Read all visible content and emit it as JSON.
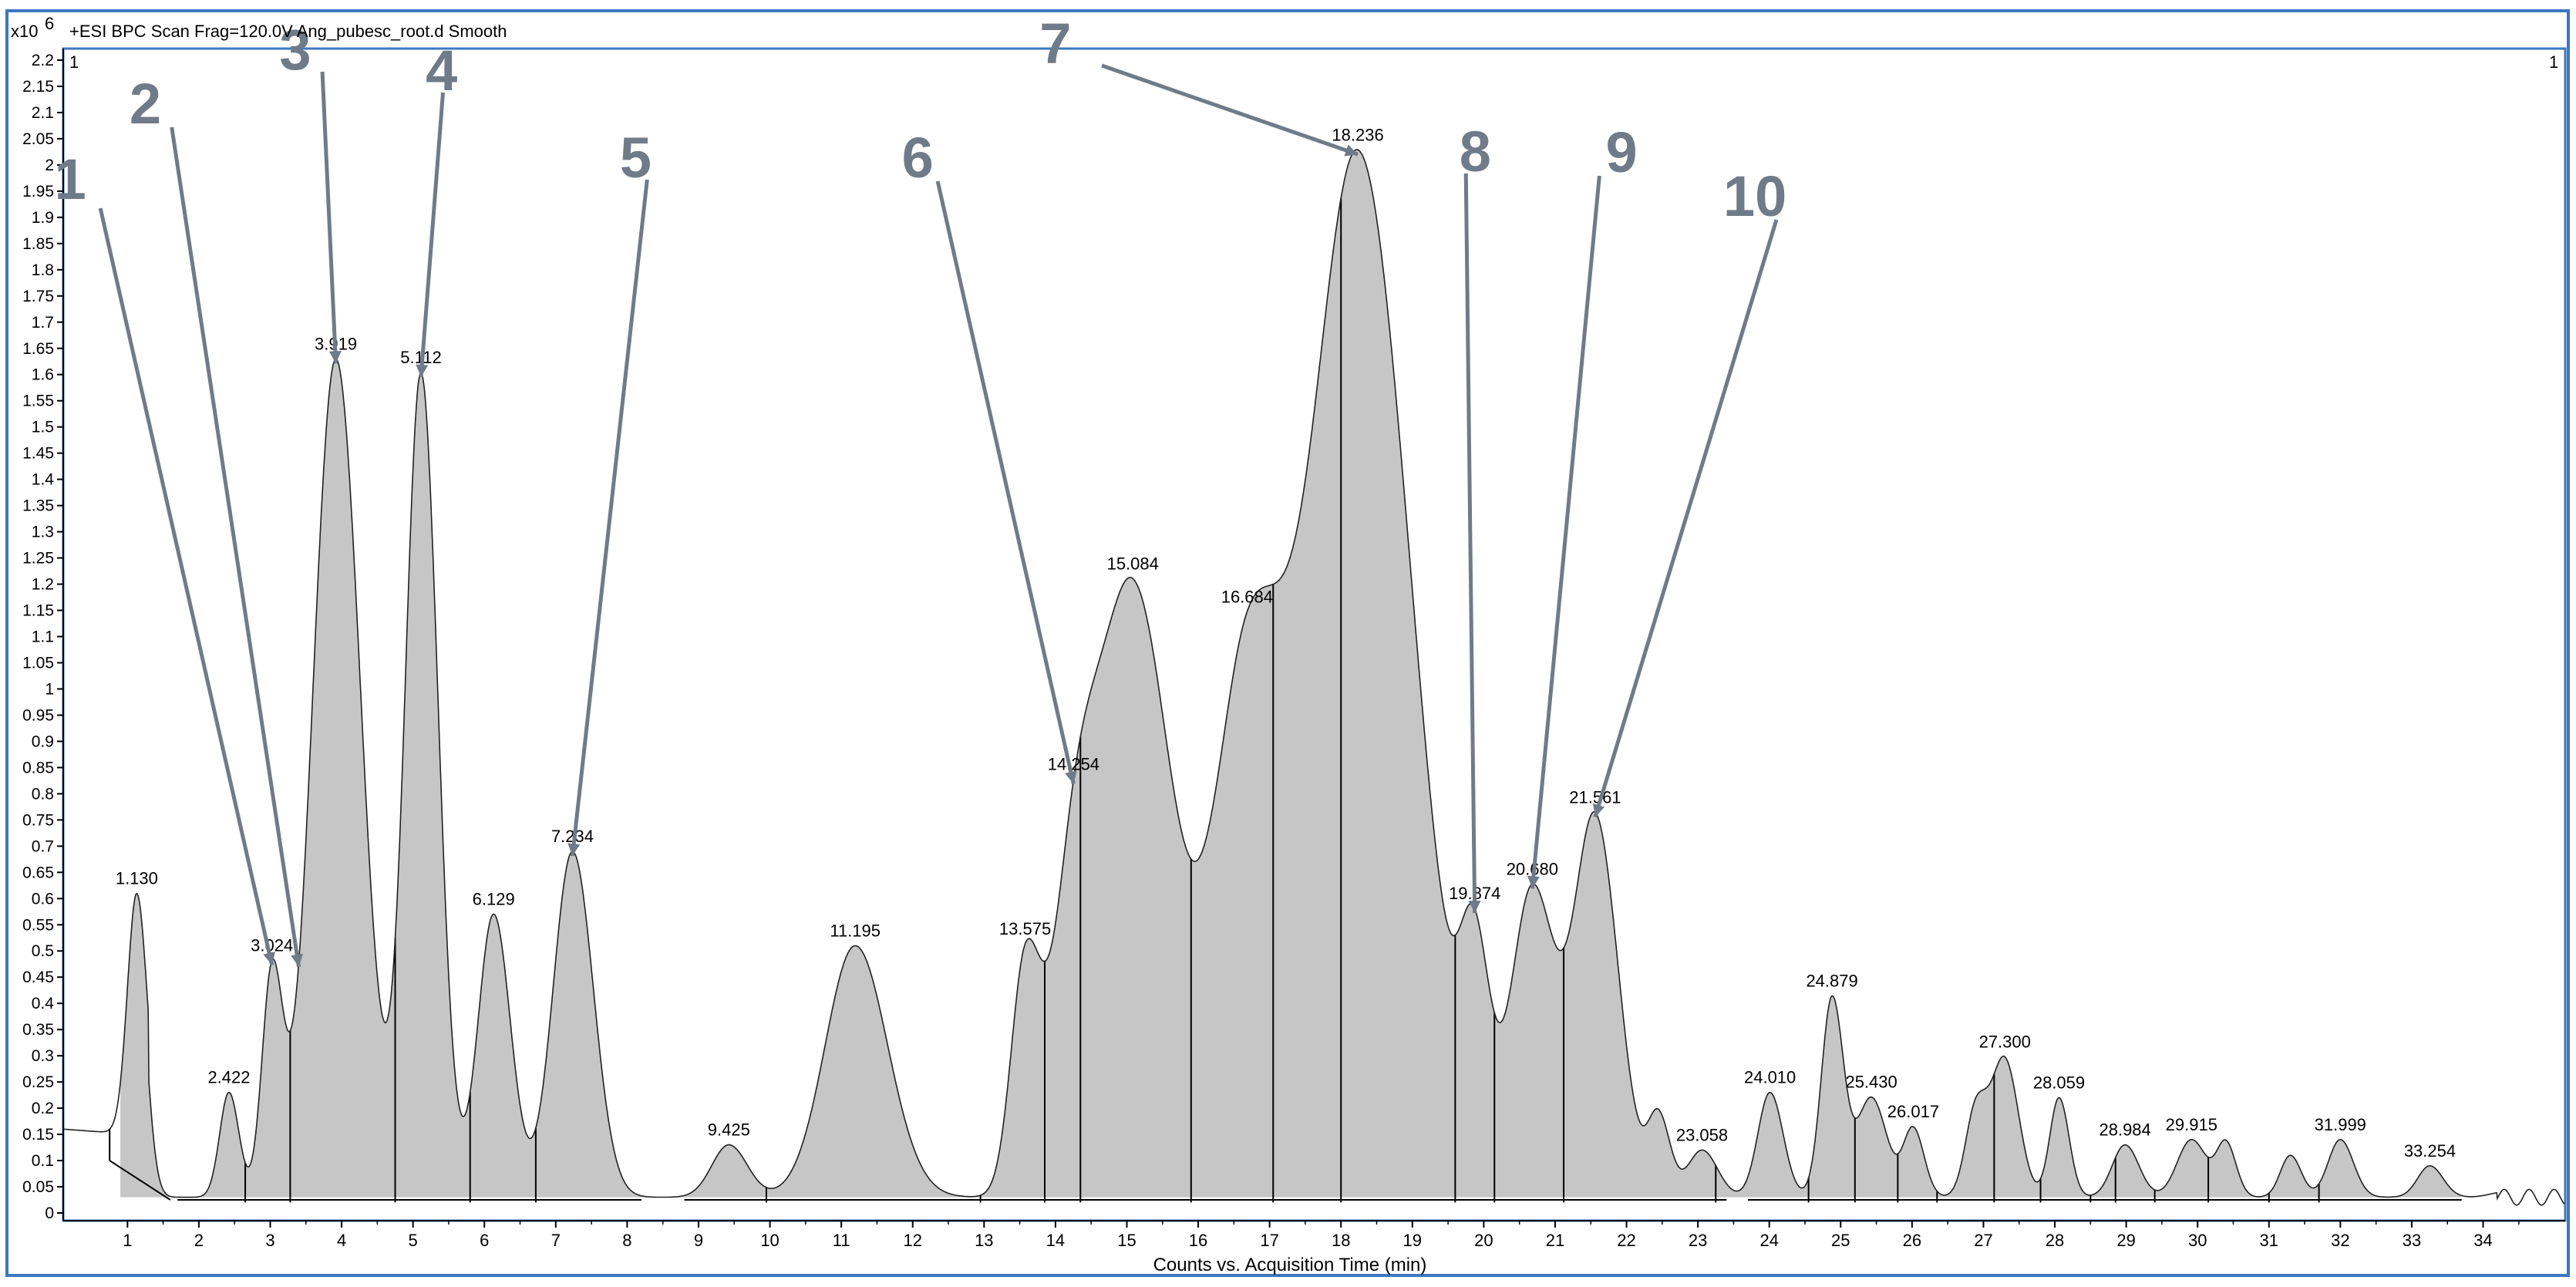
{
  "header": {
    "scale_label": "x10",
    "scale_exponent": "6",
    "title": "+ESI BPC Scan Frag=120.0V Ang_pubesc_root.d  Smooth",
    "corner_left": "1",
    "corner_right": "1"
  },
  "colors": {
    "frame_border": "#3c78c1",
    "peak_fill": "#c6c6c6",
    "trace": "#222222",
    "callout": "#6f7b89"
  },
  "chart_data": {
    "type": "line",
    "title": "+ESI BPC Scan Frag=120.0V Ang_pubesc_root.d  Smooth",
    "xlabel": "Counts vs. Acquisition Time (min)",
    "ylabel": "",
    "y_scale_label": "x10^6",
    "xlim": [
      0.1,
      35.15
    ],
    "ylim": [
      0,
      2.2
    ],
    "x_ticks": [
      "1",
      "2",
      "3",
      "4",
      "5",
      "6",
      "7",
      "8",
      "9",
      "10",
      "11",
      "12",
      "13",
      "14",
      "15",
      "16",
      "17",
      "18",
      "19",
      "20",
      "21",
      "22",
      "23",
      "24",
      "25",
      "26",
      "27",
      "28",
      "29",
      "30",
      "31",
      "32",
      "33",
      "34"
    ],
    "y_ticks": [
      "0",
      "0.05",
      "0.1",
      "0.15",
      "0.2",
      "0.25",
      "0.3",
      "0.35",
      "0.4",
      "0.45",
      "0.5",
      "0.55",
      "0.6",
      "0.65",
      "0.7",
      "0.75",
      "0.8",
      "0.85",
      "0.9",
      "0.95",
      "1",
      "1.05",
      "1.1",
      "1.15",
      "1.2",
      "1.25",
      "1.3",
      "1.35",
      "1.4",
      "1.45",
      "1.5",
      "1.55",
      "1.6",
      "1.65",
      "1.7",
      "1.75",
      "1.8",
      "1.85",
      "1.9",
      "1.95",
      "2",
      "2.05",
      "2.1",
      "2.15",
      "2.2"
    ],
    "grid": false,
    "baseline": 0.03,
    "peaks": [
      {
        "rt": 1.13,
        "height": 0.49,
        "width": 0.13,
        "label": "1.130"
      },
      {
        "rt": 2.422,
        "height": 0.23,
        "width": 0.13,
        "label": "2.422"
      },
      {
        "rt": 3.024,
        "height": 0.45,
        "width": 0.14,
        "label": "3.024"
      },
      {
        "rt": 3.919,
        "height": 1.63,
        "width": 0.32,
        "label": "3.919"
      },
      {
        "rt": 5.112,
        "height": 1.6,
        "width": 0.22,
        "label": "5.112"
      },
      {
        "rt": 6.129,
        "height": 0.57,
        "width": 0.22,
        "label": "6.129"
      },
      {
        "rt": 7.234,
        "height": 0.69,
        "width": 0.27,
        "label": "7.234"
      },
      {
        "rt": 9.425,
        "height": 0.13,
        "width": 0.24,
        "label": "9.425"
      },
      {
        "rt": 11.195,
        "height": 0.51,
        "width": 0.42,
        "label": "11.195"
      },
      {
        "rt": 13.575,
        "height": 0.46,
        "width": 0.2,
        "label": "13.575"
      },
      {
        "rt": 14.254,
        "height": 0.5,
        "width": 0.3,
        "label": "14.254"
      },
      {
        "rt": 15.084,
        "height": 1.19,
        "width": 0.52,
        "label": "15.084"
      },
      {
        "rt": 16.684,
        "height": 0.98,
        "width": 0.47,
        "label": "16.684"
      },
      {
        "rt": 18.236,
        "height": 2.02,
        "width": 0.68,
        "label": "18.236"
      },
      {
        "rt": 19.874,
        "height": 0.4,
        "width": 0.2,
        "label": "19.874"
      },
      {
        "rt": 20.68,
        "height": 0.61,
        "width": 0.3,
        "label": "20.680"
      },
      {
        "rt": 21.561,
        "height": 0.75,
        "width": 0.3,
        "label": "21.561"
      },
      {
        "rt": 23.058,
        "height": 0.12,
        "width": 0.2,
        "label": "23.058"
      },
      {
        "rt": 24.01,
        "height": 0.23,
        "width": 0.17,
        "label": "24.010"
      },
      {
        "rt": 24.879,
        "height": 0.41,
        "width": 0.15,
        "label": "24.879"
      },
      {
        "rt": 25.43,
        "height": 0.22,
        "width": 0.2,
        "label": "25.430"
      },
      {
        "rt": 26.017,
        "height": 0.16,
        "width": 0.14,
        "label": "26.017"
      },
      {
        "rt": 27.3,
        "height": 0.29,
        "width": 0.18,
        "label": "27.300"
      },
      {
        "rt": 28.059,
        "height": 0.22,
        "width": 0.13,
        "label": "28.059"
      },
      {
        "rt": 28.984,
        "height": 0.13,
        "width": 0.18,
        "label": "28.984"
      },
      {
        "rt": 29.915,
        "height": 0.14,
        "width": 0.2,
        "label": "29.915"
      },
      {
        "rt": 31.999,
        "height": 0.14,
        "width": 0.17,
        "label": "31.999"
      },
      {
        "rt": 33.254,
        "height": 0.09,
        "width": 0.17,
        "label": "33.254"
      }
    ],
    "unlabeled_peaks": [
      {
        "rt": 26.9,
        "height": 0.2,
        "width": 0.15
      },
      {
        "rt": 30.4,
        "height": 0.13,
        "width": 0.13
      },
      {
        "rt": 31.3,
        "height": 0.11,
        "width": 0.14
      },
      {
        "rt": 34.3,
        "height": 0.04,
        "width": 0.2
      },
      {
        "rt": 22.45,
        "height": 0.18,
        "width": 0.15
      }
    ],
    "callouts": [
      {
        "number": "1",
        "peak_rt": 3.024
      },
      {
        "number": "2",
        "peak_rt": 3.4
      },
      {
        "number": "3",
        "peak_rt": 3.919
      },
      {
        "number": "4",
        "peak_rt": 5.112
      },
      {
        "number": "5",
        "peak_rt": 7.234
      },
      {
        "number": "6",
        "peak_rt": 14.254
      },
      {
        "number": "7",
        "peak_rt": 18.236
      },
      {
        "number": "8",
        "peak_rt": 19.874
      },
      {
        "number": "9",
        "peak_rt": 20.68
      },
      {
        "number": "10",
        "peak_rt": 21.561
      }
    ],
    "integration_drops": [
      2.65,
      3.28,
      4.75,
      5.8,
      6.72,
      9.95,
      12.95,
      13.85,
      14.35,
      15.9,
      17.05,
      18.0,
      19.6,
      20.15,
      21.12,
      23.25,
      24.55,
      25.2,
      25.8,
      26.35,
      27.15,
      27.8,
      28.5,
      28.85,
      29.4,
      30.15,
      31.0,
      31.7
    ]
  }
}
